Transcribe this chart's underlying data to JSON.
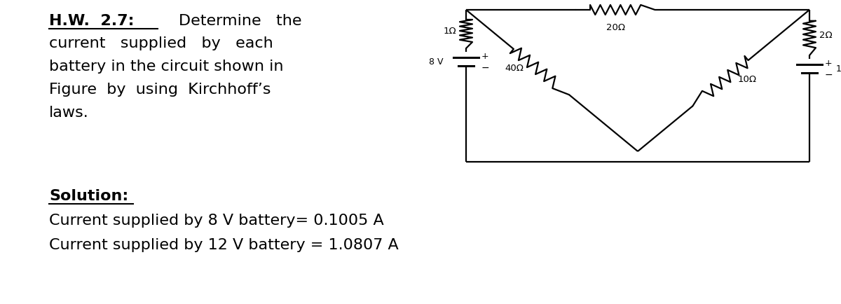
{
  "bg_color": "#ffffff",
  "title_bold": "H.W.  2.7:",
  "determine_text": "Determine   the",
  "problem_lines": [
    "current   supplied   by   each",
    "battery in the circuit shown in",
    "Figure  by  using  Kirchhoff’s",
    "laws."
  ],
  "solution_title": "Solution:",
  "solution_line1": "Current supplied by 8 V battery= 0.1005 A",
  "solution_line2": "Current supplied by 12 V battery = 1.0807 A",
  "font_size_main": 16,
  "font_size_circuit": 9.5,
  "lw_circuit": 1.6
}
